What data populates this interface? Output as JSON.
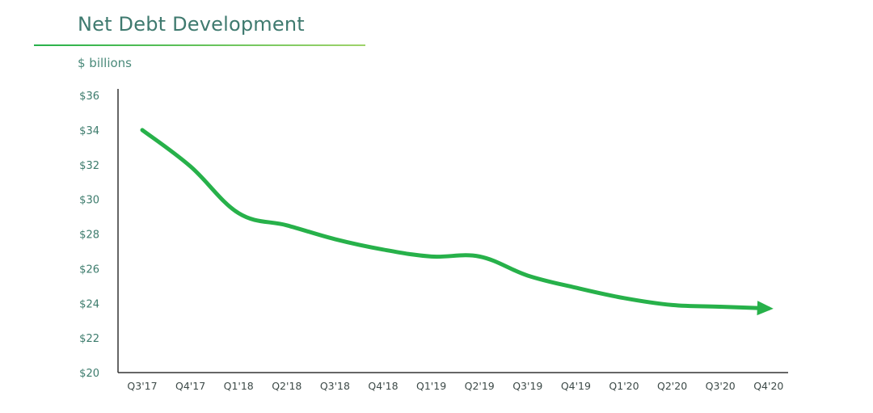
{
  "chart_data": {
    "type": "line",
    "title": "Net Debt Development",
    "subtitle": "$ billions",
    "xlabel": "",
    "ylabel": "",
    "categories": [
      "Q3'17",
      "Q4'17",
      "Q1'18",
      "Q2'18",
      "Q3'18",
      "Q4'18",
      "Q1'19",
      "Q2'19",
      "Q3'19",
      "Q4'19",
      "Q1'20",
      "Q2'20",
      "Q3'20",
      "Q4'20"
    ],
    "y_ticks": [
      "$36",
      "$34",
      "$32",
      "$30",
      "$28",
      "$26",
      "$24",
      "$22",
      "$20"
    ],
    "ylim": [
      20,
      36
    ],
    "series": [
      {
        "values": [
          34.0,
          31.9,
          29.2,
          28.5,
          27.7,
          27.1,
          26.7,
          26.7,
          25.6,
          24.9,
          24.3,
          23.9,
          23.8,
          23.7
        ],
        "color": "#27b14a",
        "end_marker": "arrow"
      }
    ],
    "grid": false,
    "legend": "none",
    "colors": {
      "title": "#3f7a6f",
      "axis": "#333333",
      "line": "#27b14a"
    }
  }
}
